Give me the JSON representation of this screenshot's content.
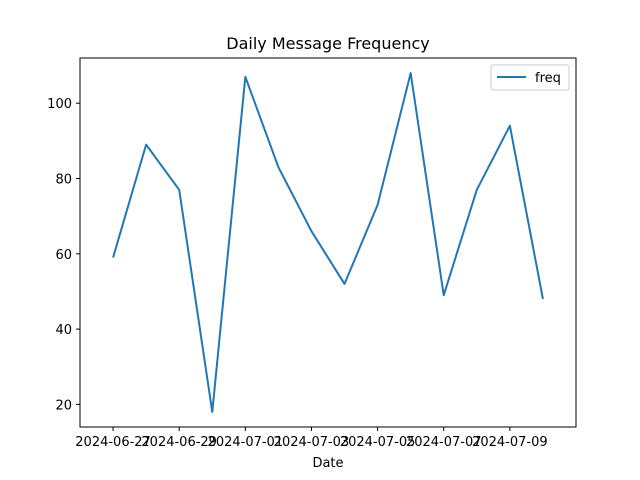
{
  "chart_data": {
    "type": "line",
    "title": "Daily Message Frequency",
    "xlabel": "Date",
    "ylabel": "",
    "x": [
      "2024-06-27",
      "2024-06-28",
      "2024-06-29",
      "2024-06-30",
      "2024-07-01",
      "2024-07-02",
      "2024-07-03",
      "2024-07-04",
      "2024-07-05",
      "2024-07-06",
      "2024-07-07",
      "2024-07-08",
      "2024-07-09",
      "2024-07-10"
    ],
    "xticks": [
      "2024-06-27",
      "2024-06-29",
      "2024-07-01",
      "2024-07-03",
      "2024-07-05",
      "2024-07-07",
      "2024-07-09"
    ],
    "xlim": [
      "2024-06-26",
      "2024-07-11"
    ],
    "ylim": [
      14,
      112
    ],
    "yticks": [
      20,
      40,
      60,
      80,
      100
    ],
    "series": [
      {
        "name": "freq",
        "color": "#1f77b4",
        "values": [
          59,
          89,
          77,
          18,
          107,
          83,
          66,
          52,
          73,
          108,
          49,
          77,
          94,
          48
        ]
      }
    ],
    "legend": "top-right",
    "grid": false
  }
}
